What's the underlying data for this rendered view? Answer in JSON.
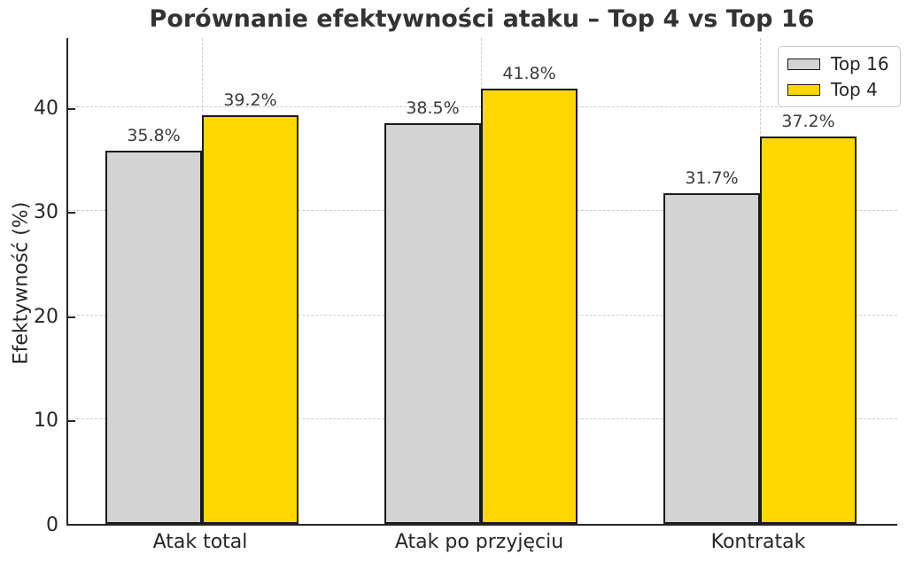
{
  "chart_data": {
    "type": "bar",
    "title": "Porównanie efektywności ataku – Top 4 vs Top 16",
    "ylabel": "Efektywność (%)",
    "xlabel": "",
    "categories": [
      "Atak total",
      "Atak po przyjęciu",
      "Kontratak"
    ],
    "series": [
      {
        "name": "Top 16",
        "color": "#d3d3d3",
        "values": [
          35.8,
          38.5,
          31.7
        ]
      },
      {
        "name": "Top 4",
        "color": "#ffd700",
        "values": [
          39.2,
          41.8,
          37.2
        ]
      }
    ],
    "value_labels": [
      [
        "35.8%",
        "38.5%",
        "31.7%"
      ],
      [
        "39.2%",
        "41.8%",
        "37.2%"
      ]
    ],
    "value_suffix": "%",
    "ylim": [
      0,
      46.8
    ],
    "yticks": [
      0,
      10,
      20,
      30,
      40
    ],
    "grid": {
      "style": "dashed",
      "axes": "both",
      "color": "#cccccc"
    },
    "bar_edge_color": "#1a1a1a",
    "axis_color": "#262626",
    "text_color": "#262626",
    "background": "#ffffff",
    "legend": {
      "position": "upper-right"
    }
  }
}
